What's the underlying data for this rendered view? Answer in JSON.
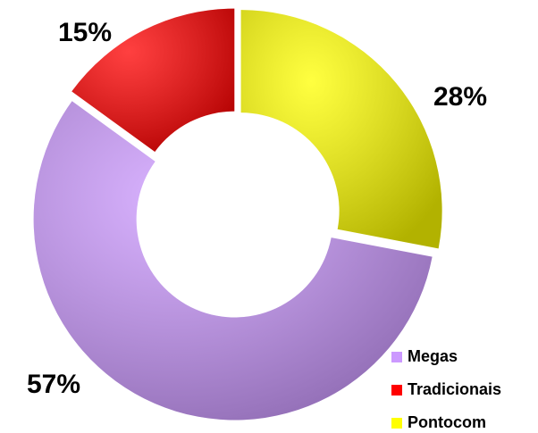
{
  "chart_data": {
    "type": "donut",
    "categories": [
      "Megas",
      "Tradicionais",
      "Pontocom"
    ],
    "values": [
      57,
      15,
      28
    ],
    "value_labels": [
      "57%",
      "15%",
      "28%"
    ],
    "colors": [
      "#cc99ff",
      "#ff0000",
      "#ffff00"
    ],
    "legend": "bottom-right"
  }
}
